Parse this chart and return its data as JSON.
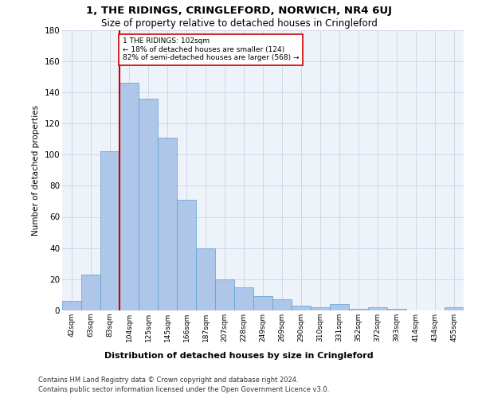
{
  "title": "1, THE RIDINGS, CRINGLEFORD, NORWICH, NR4 6UJ",
  "subtitle": "Size of property relative to detached houses in Cringleford",
  "xlabel": "Distribution of detached houses by size in Cringleford",
  "ylabel": "Number of detached properties",
  "bar_categories": [
    "42sqm",
    "63sqm",
    "83sqm",
    "104sqm",
    "125sqm",
    "145sqm",
    "166sqm",
    "187sqm",
    "207sqm",
    "228sqm",
    "249sqm",
    "269sqm",
    "290sqm",
    "310sqm",
    "331sqm",
    "352sqm",
    "372sqm",
    "393sqm",
    "414sqm",
    "434sqm",
    "455sqm"
  ],
  "bar_values": [
    6,
    23,
    102,
    146,
    136,
    111,
    71,
    40,
    20,
    15,
    9,
    7,
    3,
    2,
    4,
    1,
    2,
    1,
    0,
    0,
    2
  ],
  "bar_color": "#aec6e8",
  "bar_edge_color": "#5a9fd4",
  "vline_color": "#cc0000",
  "annotation_text": "1 THE RIDINGS: 102sqm\n← 18% of detached houses are smaller (124)\n82% of semi-detached houses are larger (568) →",
  "annotation_box_color": "#ffffff",
  "annotation_box_edge": "#cc0000",
  "ylim": [
    0,
    180
  ],
  "yticks": [
    0,
    20,
    40,
    60,
    80,
    100,
    120,
    140,
    160,
    180
  ],
  "grid_color": "#d0d8e8",
  "bg_color": "#eef2f9",
  "footer_line1": "Contains HM Land Registry data © Crown copyright and database right 2024.",
  "footer_line2": "Contains public sector information licensed under the Open Government Licence v3.0."
}
